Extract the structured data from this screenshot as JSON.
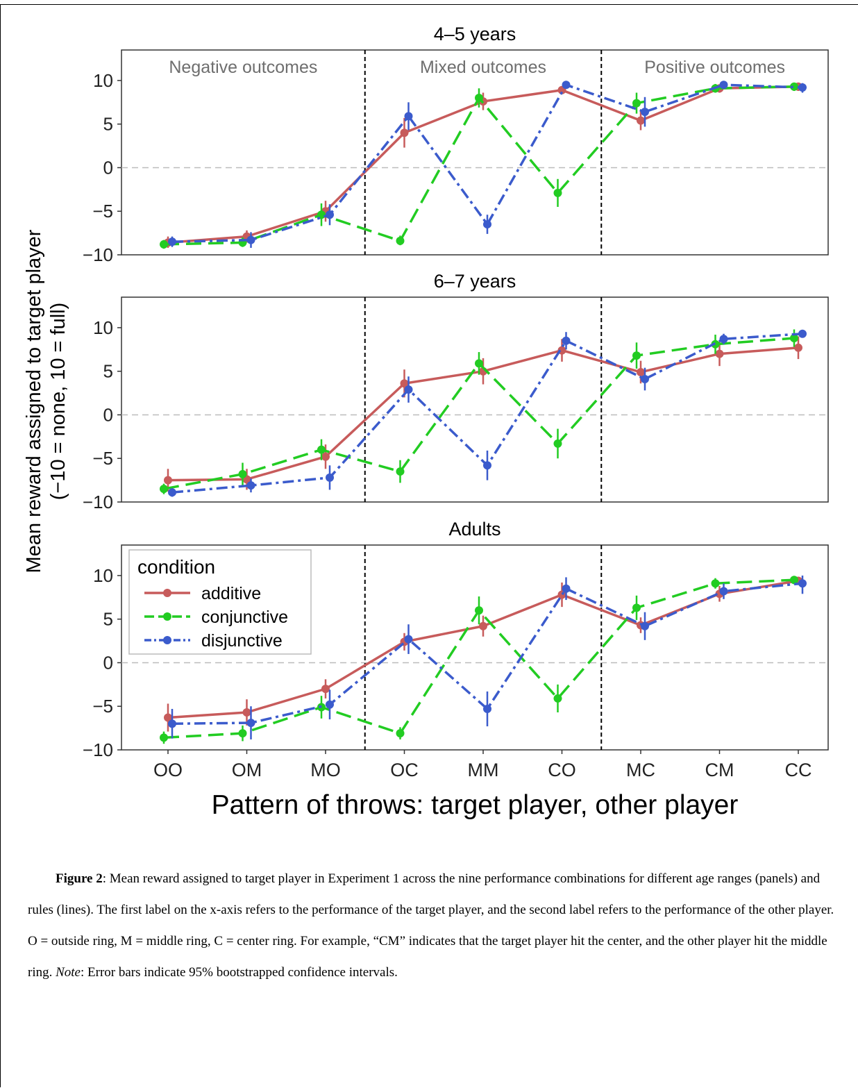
{
  "chart_data": {
    "type": "line",
    "categories": [
      "OO",
      "OM",
      "MO",
      "OC",
      "MM",
      "CO",
      "MC",
      "CM",
      "CC"
    ],
    "xlabel": "Pattern of throws: target player, other player",
    "ylabel_line1": "Mean reward assigned to target player",
    "ylabel_line2": "(−10 = none, 10 = full)",
    "ylim": [
      -10,
      13.5
    ],
    "yticks": [
      "−10",
      "−5",
      "0",
      "5",
      "10"
    ],
    "ytick_values": [
      -10,
      -5,
      0,
      5,
      10
    ],
    "reference_line_y": 0,
    "section_dividers_after_index": [
      2,
      5
    ],
    "section_labels": [
      "Negative outcomes",
      "Mixed outcomes",
      "Positive outcomes"
    ],
    "legend": {
      "title": "condition",
      "placement": "top-left of Adults panel",
      "entries": [
        "additive",
        "conjunctive",
        "disjunctive"
      ]
    },
    "colors": {
      "additive": "#c75b5b",
      "conjunctive": "#22cc22",
      "disjunctive": "#3b5bcc",
      "reference": "#bbbbbb"
    },
    "panels": [
      {
        "title": "4–5 years",
        "series": [
          {
            "name": "additive",
            "values": [
              -8.6,
              -7.9,
              -5.0,
              4.0,
              7.6,
              8.9,
              5.4,
              9.1,
              9.3
            ],
            "ci": [
              [
                -9.2,
                -7.9
              ],
              [
                -8.6,
                -7.2
              ],
              [
                -6.2,
                -3.8
              ],
              [
                2.3,
                5.7
              ],
              [
                6.6,
                8.6
              ],
              [
                8.6,
                9.3
              ],
              [
                4.3,
                6.5
              ],
              [
                8.6,
                9.5
              ],
              [
                8.8,
                9.7
              ]
            ]
          },
          {
            "name": "conjunctive",
            "values": [
              -8.8,
              -8.6,
              -5.4,
              -8.4,
              8.0,
              -2.9,
              7.4,
              9.1,
              9.3
            ],
            "ci": [
              [
                -9.3,
                -8.3
              ],
              [
                -9.1,
                -8.0
              ],
              [
                -6.7,
                -4.1
              ],
              [
                -8.9,
                -7.8
              ],
              [
                6.9,
                9.1
              ],
              [
                -4.5,
                -1.3
              ],
              [
                6.2,
                8.6
              ],
              [
                8.6,
                9.6
              ],
              [
                8.8,
                9.7
              ]
            ]
          },
          {
            "name": "disjunctive",
            "values": [
              -8.5,
              -8.3,
              -5.4,
              5.9,
              -6.5,
              9.5,
              6.4,
              9.5,
              9.2
            ],
            "ci": [
              [
                -9.1,
                -7.9
              ],
              [
                -9.2,
                -7.4
              ],
              [
                -6.6,
                -4.2
              ],
              [
                4.3,
                7.5
              ],
              [
                -7.6,
                -5.4
              ],
              [
                9.1,
                9.8
              ],
              [
                4.7,
                8.1
              ],
              [
                9.1,
                9.8
              ],
              [
                8.6,
                9.7
              ]
            ]
          }
        ]
      },
      {
        "title": "6–7 years",
        "series": [
          {
            "name": "additive",
            "values": [
              -7.5,
              -7.4,
              -4.8,
              3.6,
              5.0,
              7.4,
              4.9,
              7.0,
              7.7
            ],
            "ci": [
              [
                -8.8,
                -6.2
              ],
              [
                -8.6,
                -6.2
              ],
              [
                -6.2,
                -3.4
              ],
              [
                2.0,
                5.2
              ],
              [
                3.5,
                6.5
              ],
              [
                6.1,
                8.7
              ],
              [
                3.6,
                6.2
              ],
              [
                5.6,
                8.4
              ],
              [
                6.4,
                9.0
              ]
            ]
          },
          {
            "name": "conjunctive",
            "values": [
              -8.5,
              -6.8,
              -4.0,
              -6.5,
              5.9,
              -3.3,
              6.8,
              8.1,
              8.8
            ],
            "ci": [
              [
                -9.1,
                -7.9
              ],
              [
                -8.1,
                -5.5
              ],
              [
                -5.2,
                -2.8
              ],
              [
                -7.8,
                -5.2
              ],
              [
                4.6,
                7.2
              ],
              [
                -5.0,
                -1.6
              ],
              [
                5.3,
                8.3
              ],
              [
                7.0,
                9.2
              ],
              [
                7.8,
                9.8
              ]
            ]
          },
          {
            "name": "disjunctive",
            "values": [
              -8.9,
              -8.1,
              -7.2,
              2.9,
              -5.8,
              8.5,
              4.1,
              8.7,
              9.3
            ],
            "ci": [
              [
                -9.4,
                -8.4
              ],
              [
                -8.9,
                -7.3
              ],
              [
                -8.6,
                -5.8
              ],
              [
                1.4,
                4.4
              ],
              [
                -7.5,
                -4.1
              ],
              [
                7.5,
                9.5
              ],
              [
                2.8,
                5.4
              ],
              [
                8.1,
                9.3
              ],
              [
                8.9,
                9.6
              ]
            ]
          }
        ]
      },
      {
        "title": "Adults",
        "series": [
          {
            "name": "additive",
            "values": [
              -6.3,
              -5.7,
              -3.0,
              2.4,
              4.2,
              7.8,
              4.3,
              7.9,
              9.4
            ],
            "ci": [
              [
                -7.9,
                -4.7
              ],
              [
                -7.2,
                -4.2
              ],
              [
                -4.1,
                -1.9
              ],
              [
                1.4,
                3.4
              ],
              [
                3.0,
                5.4
              ],
              [
                6.4,
                9.2
              ],
              [
                3.4,
                5.2
              ],
              [
                7.0,
                8.8
              ],
              [
                8.9,
                9.8
              ]
            ]
          },
          {
            "name": "conjunctive",
            "values": [
              -8.6,
              -8.1,
              -5.1,
              -8.1,
              6.0,
              -4.1,
              6.3,
              9.1,
              9.5
            ],
            "ci": [
              [
                -9.3,
                -7.9
              ],
              [
                -9.0,
                -7.2
              ],
              [
                -6.4,
                -3.8
              ],
              [
                -8.8,
                -7.4
              ],
              [
                4.4,
                7.6
              ],
              [
                -5.7,
                -2.5
              ],
              [
                4.9,
                7.7
              ],
              [
                8.5,
                9.7
              ],
              [
                9.0,
                9.9
              ]
            ]
          },
          {
            "name": "disjunctive",
            "values": [
              -7.0,
              -6.9,
              -4.8,
              2.7,
              -5.3,
              8.5,
              4.2,
              8.2,
              9.1
            ],
            "ci": [
              [
                -8.7,
                -5.3
              ],
              [
                -8.8,
                -5.0
              ],
              [
                -6.5,
                -3.1
              ],
              [
                1.0,
                4.4
              ],
              [
                -7.3,
                -3.3
              ],
              [
                7.2,
                9.8
              ],
              [
                2.6,
                5.8
              ],
              [
                7.3,
                9.1
              ],
              [
                7.9,
                10.0
              ]
            ]
          }
        ]
      }
    ]
  },
  "caption": {
    "label": "Figure 2",
    "text": ": Mean reward assigned to target player in Experiment 1 across the nine performance combinations for different age ranges (panels) and rules (lines). The first label on the x-axis refers to the performance of the target player, and the second label refers to the performance of the other player. O = outside ring, M = middle ring, C = center ring. For example, “CM” indicates that the target player hit the center, and the other player hit the middle ring. ",
    "note_label": "Note",
    "note_text": ": Error bars indicate 95% bootstrapped confidence intervals."
  }
}
